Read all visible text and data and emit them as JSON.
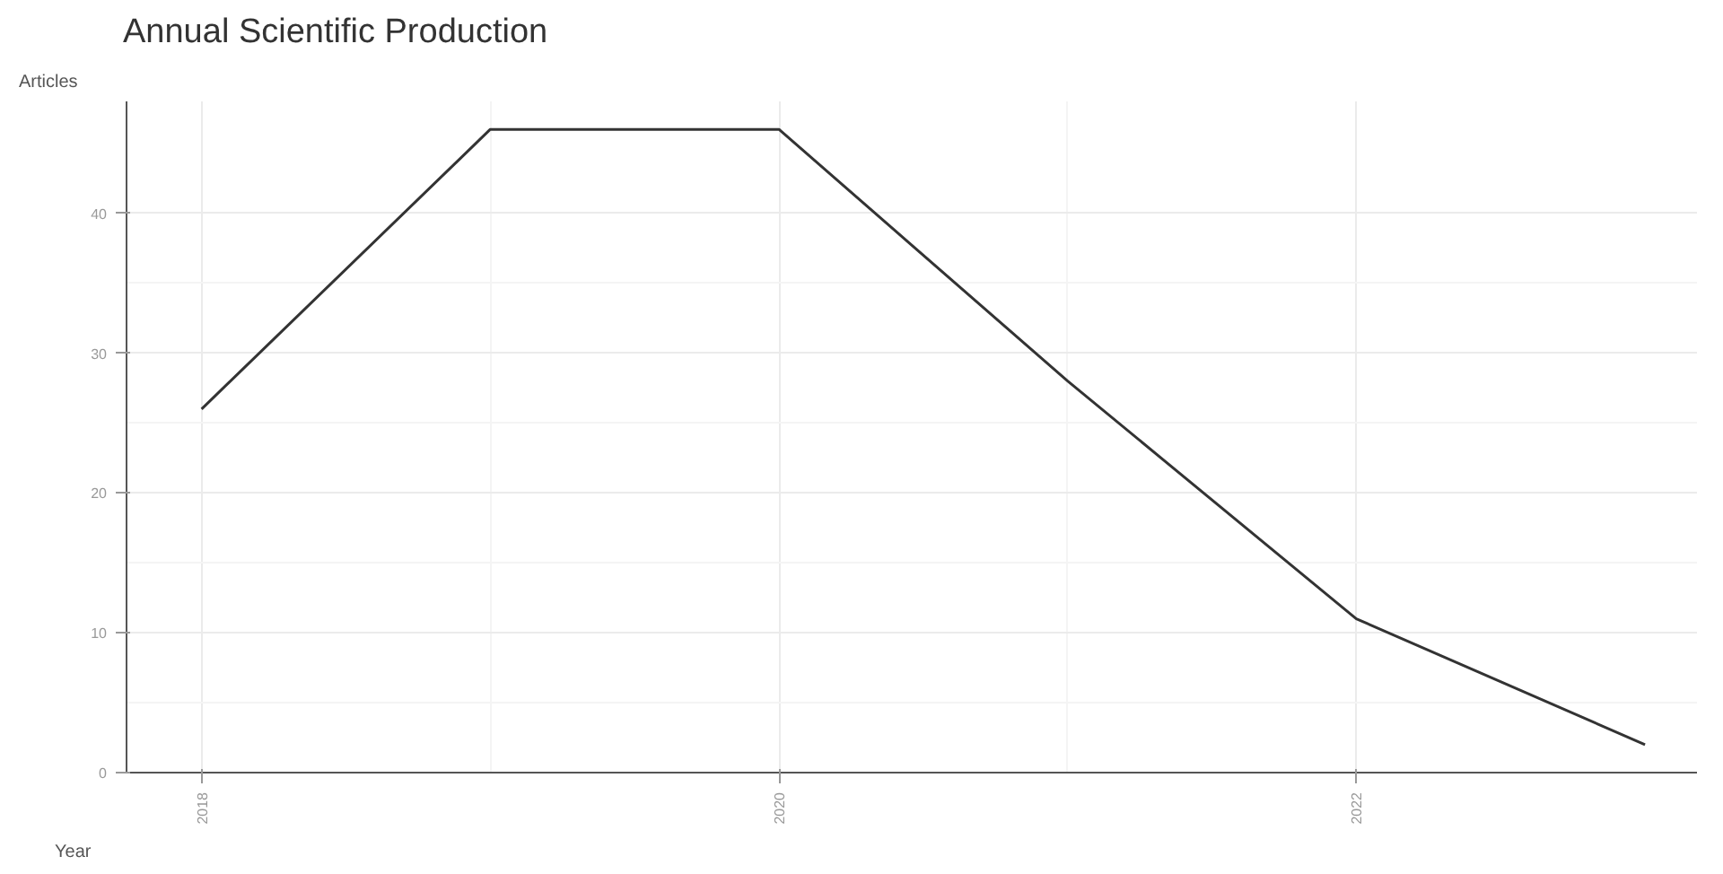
{
  "chart_data": {
    "type": "line",
    "title": "Annual Scientific Production",
    "xlabel": "Year",
    "ylabel": "Articles",
    "x": [
      2018,
      2019,
      2020,
      2021,
      2022,
      2023
    ],
    "series": [
      {
        "color": "#333333",
        "values": [
          26,
          46,
          46,
          28,
          11,
          2
        ]
      }
    ],
    "xlim": [
      2017.74,
      2023.18
    ],
    "xticks": [
      2018,
      2020,
      2022
    ],
    "ylim": [
      0,
      48
    ],
    "yticks": [
      0,
      10,
      20,
      30,
      40
    ],
    "grid": true,
    "marker": "none",
    "line_style": "solid"
  }
}
